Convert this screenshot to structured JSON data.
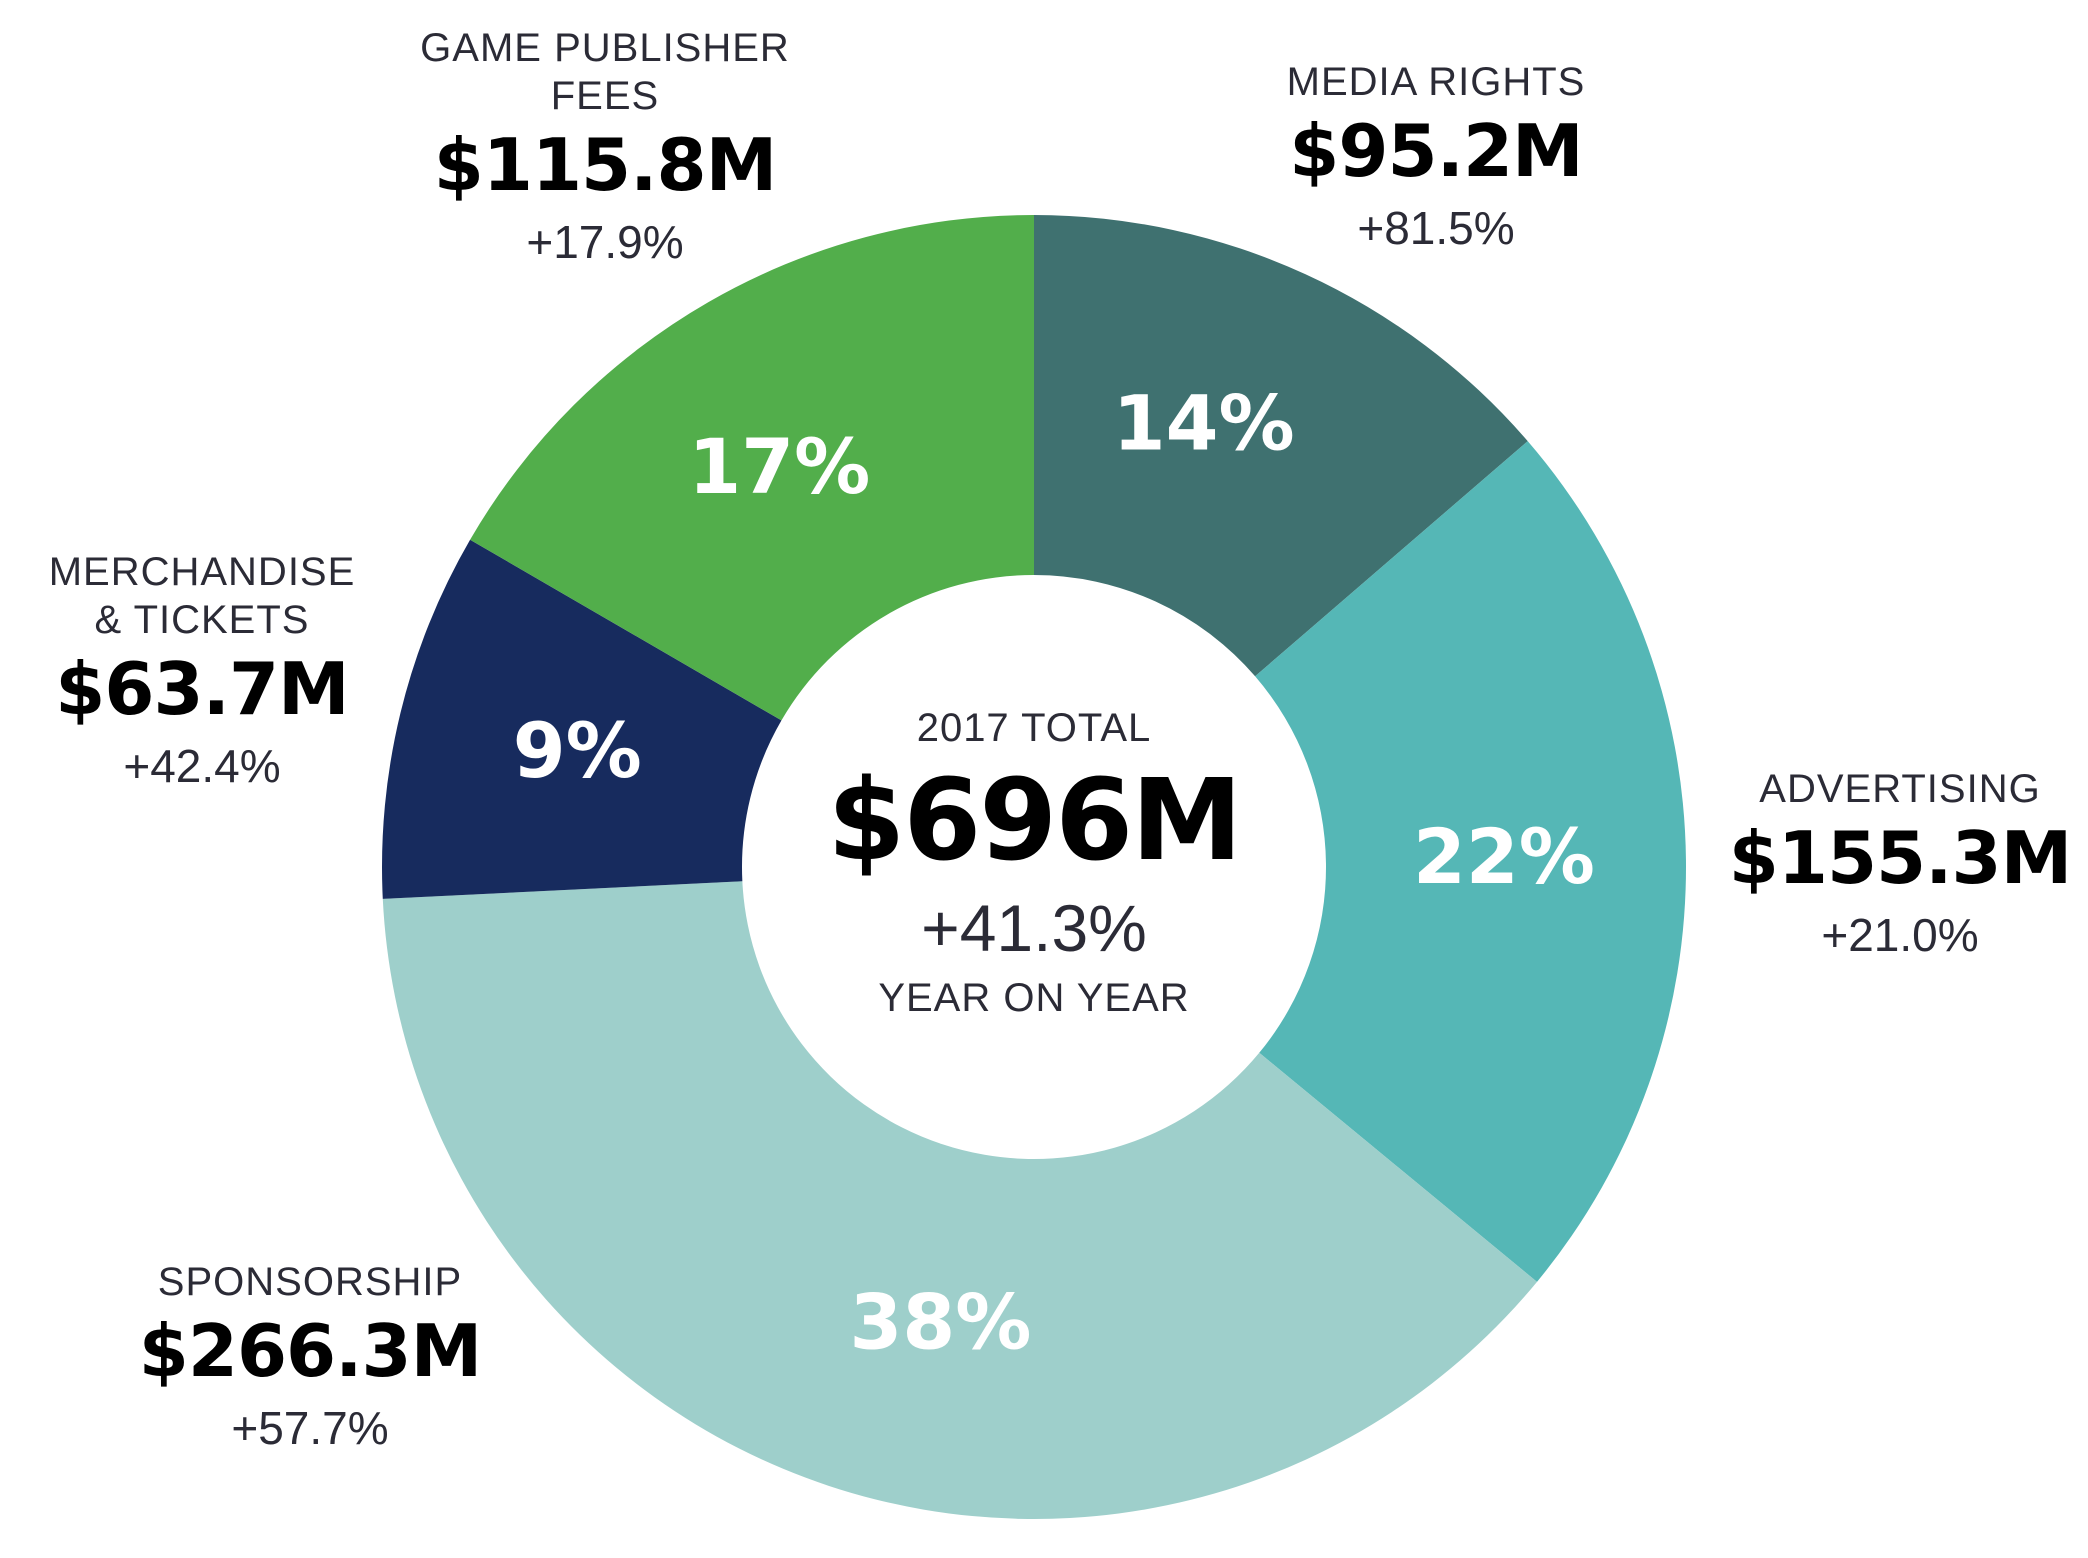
{
  "chart_data": {
    "type": "pie",
    "variant": "donut",
    "title": "2017 TOTAL",
    "start_angle_deg": 0,
    "direction": "clockwise",
    "segments": [
      {
        "name": "MEDIA RIGHTS",
        "value": 95.2,
        "value_label": "$95.2M",
        "share_label": "14%",
        "change": "+81.5%",
        "color": "#3f7170"
      },
      {
        "name": "ADVERTISING",
        "value": 155.3,
        "value_label": "$155.3M",
        "share_label": "22%",
        "change": "+21.0%",
        "color": "#55b7b6"
      },
      {
        "name": "SPONSORSHIP",
        "value": 266.3,
        "value_label": "$266.3M",
        "share_label": "38%",
        "change": "+57.7%",
        "color": "#9ecfcb"
      },
      {
        "name": "MERCHANDISE & TICKETS",
        "name_lines": [
          "MERCHANDISE",
          "& TICKETS"
        ],
        "value": 63.7,
        "value_label": "$63.7M",
        "share_label": "9%",
        "change": "+42.4%",
        "color": "#172b5e"
      },
      {
        "name": "GAME PUBLISHER FEES",
        "name_lines": [
          "GAME PUBLISHER",
          "FEES"
        ],
        "value": 115.8,
        "value_label": "$115.8M",
        "share_label": "17%",
        "change": "+17.9%",
        "color": "#52ae4b"
      }
    ],
    "center": {
      "title": "2017 TOTAL",
      "value": "$696M",
      "change": "+41.3%",
      "subtitle": "YEAR ON YEAR"
    }
  },
  "callouts": {
    "media_rights": {
      "name": "MEDIA RIGHTS",
      "value": "$95.2M",
      "change": "+81.5%"
    },
    "advertising": {
      "name": "ADVERTISING",
      "value": "$155.3M",
      "change": "+21.0%"
    },
    "sponsorship": {
      "name": "SPONSORSHIP",
      "value": "$266.3M",
      "change": "+57.7%"
    },
    "merchandise": {
      "name_line1": "MERCHANDISE",
      "name_line2": "& TICKETS",
      "value": "$63.7M",
      "change": "+42.4%"
    },
    "game_publisher": {
      "name_line1": "GAME PUBLISHER",
      "name_line2": "FEES",
      "value": "$115.8M",
      "change": "+17.9%"
    }
  }
}
